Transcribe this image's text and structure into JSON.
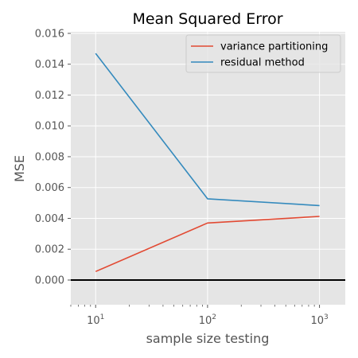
{
  "chart_data": {
    "type": "line",
    "title": "Mean Squared Error",
    "xlabel": "sample size testing",
    "ylabel": "MSE",
    "xscale": "log",
    "xlim": [
      6,
      1700
    ],
    "ylim": [
      -0.0016,
      0.0161
    ],
    "x": [
      10,
      100,
      1000
    ],
    "x_tick_values": [
      10,
      100,
      1000
    ],
    "x_tick_labels": [
      {
        "base": "10",
        "exp": "1"
      },
      {
        "base": "10",
        "exp": "2"
      },
      {
        "base": "10",
        "exp": "3"
      }
    ],
    "y_ticks": [
      "0.000",
      "0.002",
      "0.004",
      "0.006",
      "0.008",
      "0.010",
      "0.012",
      "0.014",
      "0.016"
    ],
    "y_tick_values": [
      0,
      0.002,
      0.004,
      0.006,
      0.008,
      0.01,
      0.012,
      0.014,
      0.016
    ],
    "series": [
      {
        "name": "variance partitioning",
        "color": "#e24a33",
        "values": [
          0.00055,
          0.0037,
          0.00413
        ]
      },
      {
        "name": "residual method",
        "color": "#348abd",
        "values": [
          0.0147,
          0.00527,
          0.00483
        ]
      }
    ],
    "hline": {
      "y": 0,
      "color": "#000000"
    },
    "grid": true,
    "background": "#e5e5e5",
    "legend_position": "top-right"
  }
}
